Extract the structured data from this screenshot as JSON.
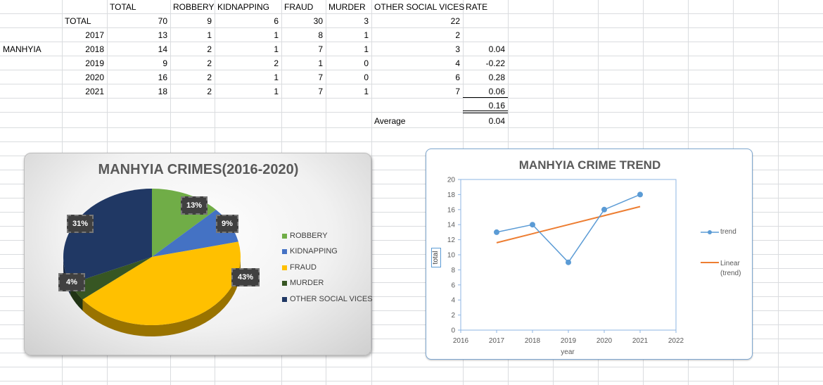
{
  "sheet": {
    "columns": [
      "TOTAL",
      "ROBBERY",
      "KIDNAPPING",
      "FRAUD",
      "MURDER",
      "OTHER SOCIAL VICES",
      "RATE"
    ],
    "region_label": "MANHYIA",
    "rows": [
      {
        "label": "TOTAL",
        "total": "70",
        "robbery": "9",
        "kidnapping": "6",
        "fraud": "30",
        "murder": "3",
        "other": "22",
        "rate": ""
      },
      {
        "label": "2017",
        "total": "13",
        "robbery": "1",
        "kidnapping": "1",
        "fraud": "8",
        "murder": "1",
        "other": "2",
        "rate": ""
      },
      {
        "label": "2018",
        "total": "14",
        "robbery": "2",
        "kidnapping": "1",
        "fraud": "7",
        "murder": "1",
        "other": "3",
        "rate": "0.04"
      },
      {
        "label": "2019",
        "total": "9",
        "robbery": "2",
        "kidnapping": "2",
        "fraud": "1",
        "murder": "0",
        "other": "4",
        "rate": "-0.22"
      },
      {
        "label": "2020",
        "total": "16",
        "robbery": "2",
        "kidnapping": "1",
        "fraud": "7",
        "murder": "0",
        "other": "6",
        "rate": "0.28"
      },
      {
        "label": "2021",
        "total": "18",
        "robbery": "2",
        "kidnapping": "1",
        "fraud": "7",
        "murder": "1",
        "other": "7",
        "rate": "0.06"
      }
    ],
    "rate_sum": "0.16",
    "average_label": "Average",
    "average_value": "0.04"
  },
  "chart_data": [
    {
      "type": "pie",
      "title": "MANHYIA CRIMES(2016-2020)",
      "categories": [
        "ROBBERY",
        "KIDNAPPING",
        "FRAUD",
        "MURDER",
        "OTHER SOCIAL VICES"
      ],
      "values": [
        9,
        6,
        30,
        3,
        22
      ],
      "labels": [
        "13%",
        "9%",
        "43%",
        "4%",
        "31%"
      ],
      "colors": [
        "#70ad47",
        "#4472c4",
        "#ffc000",
        "#375623",
        "#203864"
      ],
      "legend": "right"
    },
    {
      "type": "line",
      "title": "MANHYIA CRIME TREND",
      "xlabel": "year",
      "ylabel": "total",
      "x": [
        2017,
        2018,
        2019,
        2020,
        2021
      ],
      "series": [
        {
          "name": "trend",
          "values": [
            13,
            14,
            9,
            16,
            18
          ],
          "color": "#5b9bd5"
        },
        {
          "name": "Linear (trend)",
          "values": [
            11.6,
            12.8,
            14.0,
            15.2,
            16.4
          ],
          "color": "#ed7d31"
        }
      ],
      "xlim": [
        2016,
        2022
      ],
      "ylim": [
        0,
        20
      ],
      "x_ticks": [
        "2016",
        "2017",
        "2018",
        "2019",
        "2020",
        "2021",
        "2022"
      ],
      "y_ticks": [
        "0",
        "2",
        "4",
        "6",
        "8",
        "10",
        "12",
        "14",
        "16",
        "18",
        "20"
      ],
      "legend_labels": [
        "trend",
        "Linear",
        "(trend)"
      ],
      "legend": "right"
    }
  ]
}
